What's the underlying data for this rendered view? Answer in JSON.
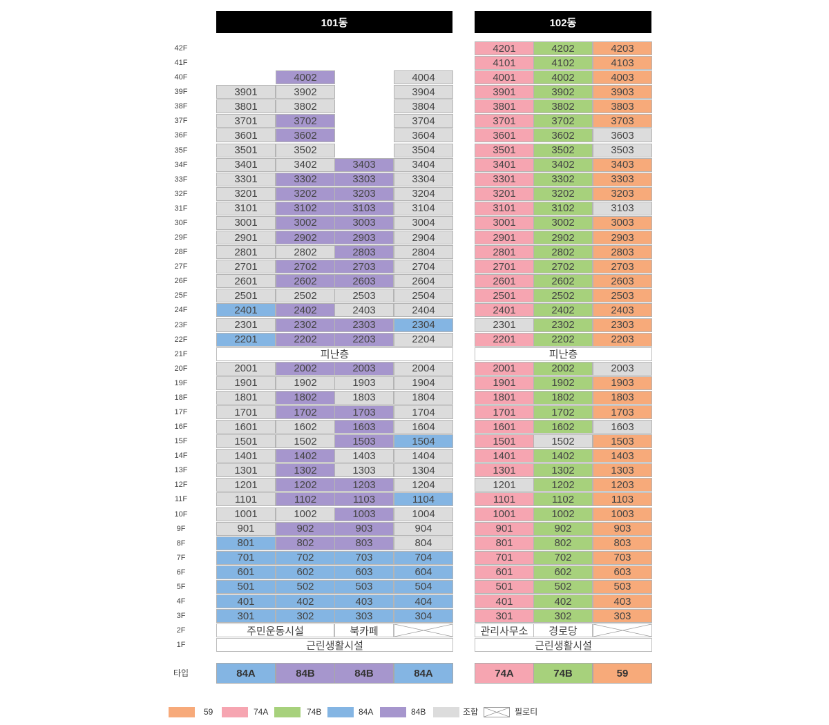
{
  "colors": {
    "59": "#f7aa7a",
    "74A": "#f6a5b1",
    "74B": "#a7d17c",
    "84A": "#84b5e3",
    "84B": "#a696cd",
    "union": "#dcdcdc"
  },
  "floors": [
    "42F",
    "41F",
    "40F",
    "39F",
    "38F",
    "37F",
    "36F",
    "35F",
    "34F",
    "33F",
    "32F",
    "31F",
    "30F",
    "29F",
    "28F",
    "27F",
    "26F",
    "25F",
    "24F",
    "23F",
    "22F",
    "21F",
    "20F",
    "19F",
    "18F",
    "17F",
    "16F",
    "15F",
    "14F",
    "13F",
    "12F",
    "11F",
    "10F",
    "9F",
    "8F",
    "7F",
    "6F",
    "5F",
    "4F",
    "3F",
    "2F",
    "1F"
  ],
  "buildings": [
    {
      "name": "101동",
      "columns": [
        {
          "code": "01",
          "default": "84A",
          "top": 39,
          "exceptions": {
            "39": "u",
            "38": "u",
            "37": "u",
            "36": "u",
            "35": "u",
            "34": "u",
            "33": "u",
            "32": "u",
            "31": "u",
            "30": "u",
            "29": "u",
            "28": "u",
            "27": "u",
            "26": "u",
            "25": "u",
            "23": "u",
            "20": "u",
            "19": "u",
            "18": "u",
            "17": "u",
            "16": "u",
            "15": "u",
            "14": "u",
            "13": "u",
            "12": "u",
            "11": "u",
            "10": "u",
            "9": "u"
          }
        },
        {
          "code": "02",
          "default": "84B",
          "top": 40,
          "exceptions": {
            "39": "u",
            "38": "u",
            "35": "u",
            "34": "u",
            "28": "u",
            "25": "u",
            "19": "u",
            "16": "u",
            "15": "u",
            "10": "u",
            "7": "84A",
            "6": "84A",
            "5": "84A",
            "4": "84A",
            "3": "84A"
          }
        },
        {
          "code": "03",
          "default": "84B",
          "top": 34,
          "exceptions": {
            "25": "u",
            "24": "u",
            "19": "u",
            "18": "u",
            "14": "u",
            "13": "u",
            "7": "84A",
            "6": "84A",
            "5": "84A",
            "4": "84A",
            "3": "84A"
          }
        },
        {
          "code": "04",
          "default": "u",
          "top": 40,
          "exceptions": {
            "23": "84A",
            "15": "84A",
            "11": "84A",
            "7": "84A",
            "6": "84A",
            "5": "84A",
            "4": "84A",
            "3": "84A"
          }
        }
      ],
      "refuge_label": "피난층",
      "second_floor": [
        "주민운동시설",
        "북카페"
      ],
      "first_floor": "근린생활시설",
      "types": [
        "84A",
        "84B",
        "84B",
        "84A"
      ]
    },
    {
      "name": "102동",
      "columns": [
        {
          "code": "01",
          "default": "74A",
          "top": 42,
          "exceptions": {
            "23": "u",
            "12": "u"
          }
        },
        {
          "code": "02",
          "default": "74B",
          "top": 42,
          "exceptions": {
            "15": "u"
          }
        },
        {
          "code": "03",
          "default": "59",
          "top": 42,
          "exceptions": {
            "36": "u",
            "35": "u",
            "31": "u",
            "20": "u",
            "16": "u"
          }
        }
      ],
      "refuge_label": "피난층",
      "second_floor": [
        "관리사무소",
        "경로당"
      ],
      "first_floor": "근린생활시설",
      "types": [
        "74A",
        "74B",
        "59"
      ]
    }
  ],
  "type_row_label": "타입",
  "legend": [
    {
      "key": "59",
      "label": "59"
    },
    {
      "key": "74A",
      "label": "74A"
    },
    {
      "key": "74B",
      "label": "74B"
    },
    {
      "key": "84A",
      "label": "84A"
    },
    {
      "key": "84B",
      "label": "84B"
    },
    {
      "key": "union",
      "label": "조합"
    },
    {
      "key": "piloti",
      "label": "필로티"
    }
  ]
}
